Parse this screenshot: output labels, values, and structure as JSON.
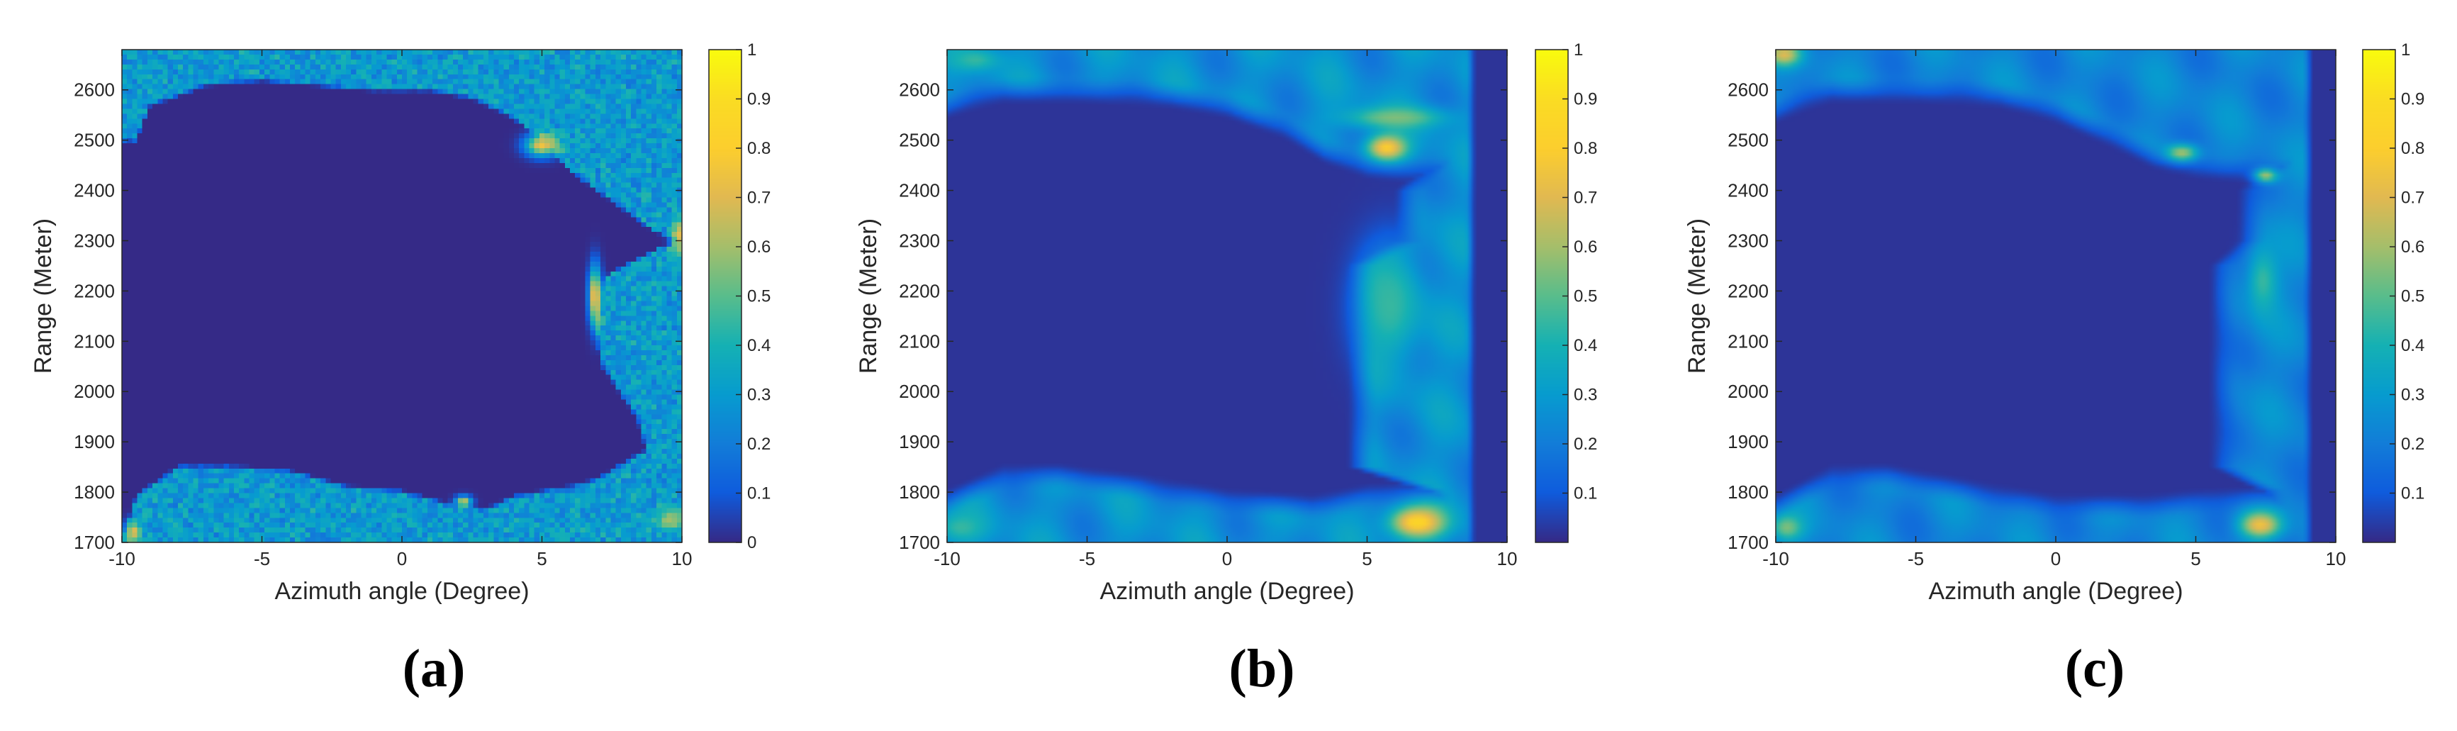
{
  "chart_data": [
    {
      "type": "heatmap",
      "panel_label": "(a)",
      "xlabel": "Azimuth angle (Degree)",
      "ylabel": "Range (Meter)",
      "xlim": [
        -10,
        10
      ],
      "ylim": [
        1700,
        2680
      ],
      "xticks": [
        -10,
        -5,
        0,
        5,
        10
      ],
      "xtick_labels": [
        "-10",
        "-5",
        "0",
        "5",
        "10"
      ],
      "yticks": [
        1700,
        1800,
        1900,
        2000,
        2100,
        2200,
        2300,
        2400,
        2500,
        2600
      ],
      "ytick_labels": [
        "1700",
        "1800",
        "1900",
        "2000",
        "2100",
        "2200",
        "2300",
        "2400",
        "2500",
        "2600"
      ],
      "colorbar": {
        "colormap": "parula",
        "ticks": [
          0,
          0.1,
          0.2,
          0.3,
          0.4,
          0.5,
          0.6,
          0.7,
          0.8,
          0.9,
          1
        ],
        "tick_labels": [
          "0",
          "0.1",
          "0.2",
          "0.3",
          "0.4",
          "0.5",
          "0.6",
          "0.7",
          "0.8",
          "0.9",
          "1"
        ]
      },
      "description_values": {
        "background_level": 0.0,
        "clutter_level": 0.3,
        "texture": "noisy",
        "region_edges": {
          "top": [
            [
              -10,
              2500
            ],
            [
              -9.5,
              2500
            ],
            [
              -9,
              2570
            ],
            [
              -7,
              2610
            ],
            [
              -5,
              2620
            ],
            [
              -3,
              2610
            ],
            [
              -1,
              2600
            ],
            [
              1,
              2600
            ],
            [
              2.5,
              2585
            ],
            [
              4,
              2545
            ],
            [
              5,
              2500
            ],
            [
              6,
              2440
            ],
            [
              7,
              2400
            ],
            [
              8,
              2360
            ],
            [
              9,
              2320
            ],
            [
              10,
              2300
            ]
          ],
          "bottom": [
            [
              -10,
              1700
            ],
            [
              -9.5,
              1790
            ],
            [
              -8,
              1850
            ],
            [
              -6,
              1850
            ],
            [
              -4,
              1840
            ],
            [
              -2,
              1810
            ],
            [
              0,
              1800
            ],
            [
              2,
              1770
            ],
            [
              3,
              1765
            ],
            [
              4,
              1790
            ],
            [
              5,
              1800
            ],
            [
              6,
              1810
            ],
            [
              7,
              1825
            ],
            [
              8,
              1860
            ],
            [
              9,
              1890
            ],
            [
              10,
              1900
            ]
          ],
          "right": [
            [
              1700,
              9.0
            ],
            [
              1850,
              9.0
            ],
            [
              1950,
              8.4
            ],
            [
              2050,
              7.2
            ],
            [
              2150,
              6.8
            ],
            [
              2230,
              7.3
            ],
            [
              2280,
              9.0
            ],
            [
              2300,
              10.0
            ],
            [
              2400,
              10.0
            ],
            [
              2680,
              10.0
            ]
          ]
        },
        "hotspots": [
          {
            "x": 5.0,
            "y": 2490,
            "peak": 0.75,
            "sx": 0.4,
            "sy": 15
          },
          {
            "x": 6.9,
            "y": 2190,
            "peak": 0.8,
            "sx": 0.15,
            "sy": 40
          },
          {
            "x": 9.9,
            "y": 2310,
            "peak": 0.7,
            "sx": 0.2,
            "sy": 25
          },
          {
            "x": 2.2,
            "y": 1780,
            "peak": 0.7,
            "sx": 0.2,
            "sy": 8
          },
          {
            "x": 9.6,
            "y": 1745,
            "peak": 0.6,
            "sx": 0.4,
            "sy": 15
          },
          {
            "x": -9.6,
            "y": 1720,
            "peak": 0.7,
            "sx": 0.2,
            "sy": 15
          }
        ]
      }
    },
    {
      "type": "heatmap",
      "panel_label": "(b)",
      "xlabel": "Azimuth angle (Degree)",
      "ylabel": "Range (Meter)",
      "xlim": [
        -10,
        10
      ],
      "ylim": [
        1700,
        2680
      ],
      "xticks": [
        -10,
        -5,
        0,
        5,
        10
      ],
      "xtick_labels": [
        "-10",
        "-5",
        "0",
        "5",
        "10"
      ],
      "yticks": [
        1700,
        1800,
        1900,
        2000,
        2100,
        2200,
        2300,
        2400,
        2500,
        2600
      ],
      "ytick_labels": [
        "1700",
        "1800",
        "1900",
        "2000",
        "2100",
        "2200",
        "2300",
        "2400",
        "2500",
        "2600"
      ],
      "colorbar": {
        "colormap": "parula",
        "ticks": [
          0.1,
          0.2,
          0.3,
          0.4,
          0.5,
          0.6,
          0.7,
          0.8,
          0.9,
          1
        ],
        "tick_labels": [
          "0.1",
          "0.2",
          "0.3",
          "0.4",
          "0.5",
          "0.6",
          "0.7",
          "0.8",
          "0.9",
          "1"
        ]
      },
      "description_values": {
        "background_level": 0.02,
        "clutter_level": 0.35,
        "texture": "smooth",
        "region_edges": {
          "top": [
            [
              -10,
              2570
            ],
            [
              -8,
              2600
            ],
            [
              -5,
              2600
            ],
            [
              -2,
              2590
            ],
            [
              0,
              2570
            ],
            [
              2,
              2530
            ],
            [
              3.5,
              2480
            ],
            [
              5,
              2450
            ],
            [
              7,
              2440
            ],
            [
              8.5,
              2440
            ]
          ],
          "bottom": [
            [
              -10,
              1780
            ],
            [
              -8,
              1830
            ],
            [
              -6,
              1830
            ],
            [
              -3,
              1810
            ],
            [
              0,
              1780
            ],
            [
              3,
              1770
            ],
            [
              5,
              1790
            ],
            [
              8.5,
              1800
            ]
          ],
          "right": [
            [
              1700,
              7.5
            ],
            [
              1800,
              7.5
            ],
            [
              1850,
              4.8
            ],
            [
              2250,
              4.8
            ],
            [
              2300,
              6.5
            ],
            [
              2400,
              6.5
            ],
            [
              2450,
              7.5
            ],
            [
              2680,
              7.5
            ]
          ]
        },
        "right_band": {
          "x0": 8.5,
          "x1": 10.0,
          "level": 0.02
        },
        "hotspots": [
          {
            "x": 5.7,
            "y": 2485,
            "peak": 0.8,
            "sx": 0.5,
            "sy": 18
          },
          {
            "x": 6.8,
            "y": 1740,
            "peak": 0.85,
            "sx": 0.7,
            "sy": 22
          },
          {
            "x": 5.8,
            "y": 2170,
            "peak": 0.45,
            "sx": 0.8,
            "sy": 80
          },
          {
            "x": 6.0,
            "y": 2545,
            "peak": 0.55,
            "sx": 1.2,
            "sy": 15
          },
          {
            "x": -9.5,
            "y": 1730,
            "peak": 0.45,
            "sx": 0.6,
            "sy": 20
          },
          {
            "x": -9.0,
            "y": 2660,
            "peak": 0.45,
            "sx": 0.6,
            "sy": 15
          }
        ]
      }
    },
    {
      "type": "heatmap",
      "panel_label": "(c)",
      "xlabel": "Azimuth angle (Degree)",
      "ylabel": "Range (Meter)",
      "xlim": [
        -10,
        10
      ],
      "ylim": [
        1700,
        2680
      ],
      "xticks": [
        -10,
        -5,
        0,
        5,
        10
      ],
      "xtick_labels": [
        "-10",
        "-5",
        "0",
        "5",
        "10"
      ],
      "yticks": [
        1700,
        1800,
        1900,
        2000,
        2100,
        2200,
        2300,
        2400,
        2500,
        2600
      ],
      "ytick_labels": [
        "1700",
        "1800",
        "1900",
        "2000",
        "2100",
        "2200",
        "2300",
        "2400",
        "2500",
        "2600"
      ],
      "colorbar": {
        "colormap": "parula",
        "ticks": [
          0.1,
          0.2,
          0.3,
          0.4,
          0.5,
          0.6,
          0.7,
          0.8,
          0.9,
          1
        ],
        "tick_labels": [
          "0.1",
          "0.2",
          "0.3",
          "0.4",
          "0.5",
          "0.6",
          "0.7",
          "0.8",
          "0.9",
          "1"
        ]
      },
      "description_values": {
        "background_level": 0.02,
        "clutter_level": 0.3,
        "texture": "smooth",
        "region_edges": {
          "top": [
            [
              -10,
              2560
            ],
            [
              -8,
              2600
            ],
            [
              -5,
              2600
            ],
            [
              -2,
              2590
            ],
            [
              0,
              2560
            ],
            [
              2,
              2510
            ],
            [
              3.5,
              2470
            ],
            [
              5,
              2450
            ],
            [
              7,
              2440
            ],
            [
              8.8,
              2440
            ]
          ],
          "bottom": [
            [
              -10,
              1770
            ],
            [
              -8,
              1830
            ],
            [
              -6,
              1830
            ],
            [
              -3,
              1800
            ],
            [
              0,
              1770
            ],
            [
              3,
              1770
            ],
            [
              5,
              1780
            ],
            [
              8.8,
              1790
            ]
          ],
          "right": [
            [
              1700,
              7.8
            ],
            [
              1800,
              7.8
            ],
            [
              1850,
              6.0
            ],
            [
              2250,
              6.0
            ],
            [
              2300,
              7.0
            ],
            [
              2400,
              7.0
            ],
            [
              2450,
              8.0
            ],
            [
              2680,
              8.0
            ]
          ]
        },
        "right_band": {
          "x0": 8.8,
          "x1": 10.0,
          "level": 0.02
        },
        "hotspots": [
          {
            "x": 7.3,
            "y": 1735,
            "peak": 0.75,
            "sx": 0.5,
            "sy": 18
          },
          {
            "x": 4.5,
            "y": 2475,
            "peak": 0.6,
            "sx": 0.4,
            "sy": 12
          },
          {
            "x": 7.5,
            "y": 2430,
            "peak": 0.6,
            "sx": 0.3,
            "sy": 10
          },
          {
            "x": -9.7,
            "y": 2670,
            "peak": 0.7,
            "sx": 0.4,
            "sy": 15
          },
          {
            "x": -9.6,
            "y": 1730,
            "peak": 0.55,
            "sx": 0.4,
            "sy": 18
          },
          {
            "x": 7.4,
            "y": 2220,
            "peak": 0.45,
            "sx": 0.4,
            "sy": 50
          }
        ]
      }
    }
  ]
}
